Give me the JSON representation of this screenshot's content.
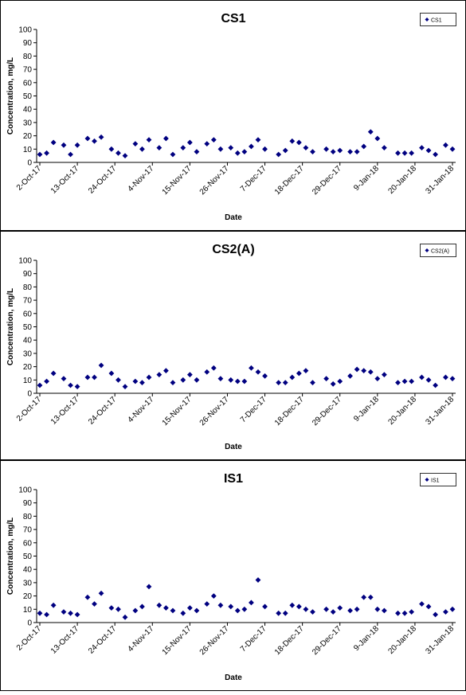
{
  "chart_data": [
    {
      "type": "scatter",
      "title": "CS1",
      "xlabel": "Date",
      "ylabel": "Concentration, mg/L",
      "ylim": [
        0,
        100
      ],
      "yticks": [
        "0",
        "10",
        "20",
        "30",
        "40",
        "50",
        "60",
        "70",
        "80",
        "90",
        "100"
      ],
      "xlim": [
        "2-Oct-17",
        "31-Jan-18"
      ],
      "xtick_labels": [
        "2-Oct-17",
        "13-Oct-17",
        "24-Oct-17",
        "4-Nov-17",
        "15-Nov-17",
        "26-Nov-17",
        "7-Dec-17",
        "18-Dec-17",
        "29-Dec-17",
        "9-Jan-18",
        "20-Jan-18",
        "31-Jan-18"
      ],
      "grid": false,
      "legend": "top-right",
      "color": "#000080",
      "series": [
        {
          "name": "CS1",
          "points": [
            [
              "2-Oct-17",
              6
            ],
            [
              "4-Oct-17",
              7
            ],
            [
              "6-Oct-17",
              15
            ],
            [
              "9-Oct-17",
              13
            ],
            [
              "11-Oct-17",
              6
            ],
            [
              "13-Oct-17",
              13
            ],
            [
              "16-Oct-17",
              18
            ],
            [
              "18-Oct-17",
              16
            ],
            [
              "20-Oct-17",
              19
            ],
            [
              "23-Oct-17",
              10
            ],
            [
              "25-Oct-17",
              7
            ],
            [
              "27-Oct-17",
              5
            ],
            [
              "30-Oct-17",
              14
            ],
            [
              "1-Nov-17",
              10
            ],
            [
              "3-Nov-17",
              17
            ],
            [
              "6-Nov-17",
              11
            ],
            [
              "8-Nov-17",
              18
            ],
            [
              "10-Nov-17",
              6
            ],
            [
              "13-Nov-17",
              11
            ],
            [
              "15-Nov-17",
              15
            ],
            [
              "17-Nov-17",
              8
            ],
            [
              "20-Nov-17",
              14
            ],
            [
              "22-Nov-17",
              17
            ],
            [
              "24-Nov-17",
              10
            ],
            [
              "27-Nov-17",
              11
            ],
            [
              "29-Nov-17",
              7
            ],
            [
              "1-Dec-17",
              8
            ],
            [
              "3-Dec-17",
              12
            ],
            [
              "5-Dec-17",
              17
            ],
            [
              "7-Dec-17",
              10
            ],
            [
              "11-Dec-17",
              6
            ],
            [
              "13-Dec-17",
              9
            ],
            [
              "15-Dec-17",
              16
            ],
            [
              "17-Dec-17",
              15
            ],
            [
              "19-Dec-17",
              11
            ],
            [
              "21-Dec-17",
              8
            ],
            [
              "25-Dec-17",
              10
            ],
            [
              "27-Dec-17",
              8
            ],
            [
              "29-Dec-17",
              9
            ],
            [
              "1-Jan-18",
              8
            ],
            [
              "3-Jan-18",
              8
            ],
            [
              "5-Jan-18",
              12
            ],
            [
              "7-Jan-18",
              23
            ],
            [
              "9-Jan-18",
              18
            ],
            [
              "11-Jan-18",
              11
            ],
            [
              "15-Jan-18",
              7
            ],
            [
              "17-Jan-18",
              7
            ],
            [
              "19-Jan-18",
              7
            ],
            [
              "22-Jan-18",
              11
            ],
            [
              "24-Jan-18",
              9
            ],
            [
              "26-Jan-18",
              6
            ],
            [
              "29-Jan-18",
              13
            ],
            [
              "31-Jan-18",
              10
            ]
          ]
        }
      ]
    },
    {
      "type": "scatter",
      "title": "CS2(A)",
      "xlabel": "Date",
      "ylabel": "Concentration, mg/L",
      "ylim": [
        0,
        100
      ],
      "yticks": [
        "0",
        "10",
        "20",
        "30",
        "40",
        "50",
        "60",
        "70",
        "80",
        "90",
        "100"
      ],
      "xlim": [
        "2-Oct-17",
        "31-Jan-18"
      ],
      "xtick_labels": [
        "2-Oct-17",
        "13-Oct-17",
        "24-Oct-17",
        "4-Nov-17",
        "15-Nov-17",
        "26-Nov-17",
        "7-Dec-17",
        "18-Dec-17",
        "29-Dec-17",
        "9-Jan-18",
        "20-Jan-18",
        "31-Jan-18"
      ],
      "grid": false,
      "legend": "top-right",
      "color": "#000080",
      "series": [
        {
          "name": "CS2(A)",
          "points": [
            [
              "2-Oct-17",
              6
            ],
            [
              "4-Oct-17",
              9
            ],
            [
              "6-Oct-17",
              15
            ],
            [
              "9-Oct-17",
              11
            ],
            [
              "11-Oct-17",
              6
            ],
            [
              "13-Oct-17",
              5
            ],
            [
              "16-Oct-17",
              12
            ],
            [
              "18-Oct-17",
              12
            ],
            [
              "20-Oct-17",
              21
            ],
            [
              "23-Oct-17",
              15
            ],
            [
              "25-Oct-17",
              10
            ],
            [
              "27-Oct-17",
              5
            ],
            [
              "30-Oct-17",
              9
            ],
            [
              "1-Nov-17",
              8
            ],
            [
              "3-Nov-17",
              12
            ],
            [
              "6-Nov-17",
              14
            ],
            [
              "8-Nov-17",
              17
            ],
            [
              "10-Nov-17",
              8
            ],
            [
              "13-Nov-17",
              10
            ],
            [
              "15-Nov-17",
              14
            ],
            [
              "17-Nov-17",
              10
            ],
            [
              "20-Nov-17",
              16
            ],
            [
              "22-Nov-17",
              19
            ],
            [
              "24-Nov-17",
              11
            ],
            [
              "27-Nov-17",
              10
            ],
            [
              "29-Nov-17",
              9
            ],
            [
              "1-Dec-17",
              9
            ],
            [
              "3-Dec-17",
              19
            ],
            [
              "5-Dec-17",
              16
            ],
            [
              "7-Dec-17",
              13
            ],
            [
              "11-Dec-17",
              8
            ],
            [
              "13-Dec-17",
              8
            ],
            [
              "15-Dec-17",
              12
            ],
            [
              "17-Dec-17",
              15
            ],
            [
              "19-Dec-17",
              17
            ],
            [
              "21-Dec-17",
              8
            ],
            [
              "25-Dec-17",
              11
            ],
            [
              "27-Dec-17",
              7
            ],
            [
              "29-Dec-17",
              9
            ],
            [
              "1-Jan-18",
              13
            ],
            [
              "3-Jan-18",
              18
            ],
            [
              "5-Jan-18",
              17
            ],
            [
              "7-Jan-18",
              16
            ],
            [
              "9-Jan-18",
              11
            ],
            [
              "11-Jan-18",
              14
            ],
            [
              "15-Jan-18",
              8
            ],
            [
              "17-Jan-18",
              9
            ],
            [
              "19-Jan-18",
              9
            ],
            [
              "22-Jan-18",
              12
            ],
            [
              "24-Jan-18",
              10
            ],
            [
              "26-Jan-18",
              6
            ],
            [
              "29-Jan-18",
              12
            ],
            [
              "31-Jan-18",
              11
            ]
          ]
        }
      ]
    },
    {
      "type": "scatter",
      "title": "IS1",
      "xlabel": "Date",
      "ylabel": "Concentration, mg/L",
      "ylim": [
        0,
        100
      ],
      "yticks": [
        "0",
        "10",
        "20",
        "30",
        "40",
        "50",
        "60",
        "70",
        "80",
        "90",
        "100"
      ],
      "xlim": [
        "2-Oct-17",
        "31-Jan-18"
      ],
      "xtick_labels": [
        "2-Oct-17",
        "13-Oct-17",
        "24-Oct-17",
        "4-Nov-17",
        "15-Nov-17",
        "26-Nov-17",
        "7-Dec-17",
        "18-Dec-17",
        "29-Dec-17",
        "9-Jan-18",
        "20-Jan-18",
        "31-Jan-18"
      ],
      "grid": false,
      "legend": "top-right",
      "color": "#000080",
      "series": [
        {
          "name": "IS1",
          "points": [
            [
              "2-Oct-17",
              7
            ],
            [
              "4-Oct-17",
              6
            ],
            [
              "6-Oct-17",
              13
            ],
            [
              "9-Oct-17",
              8
            ],
            [
              "11-Oct-17",
              7
            ],
            [
              "13-Oct-17",
              6
            ],
            [
              "16-Oct-17",
              19
            ],
            [
              "18-Oct-17",
              14
            ],
            [
              "20-Oct-17",
              22
            ],
            [
              "23-Oct-17",
              11
            ],
            [
              "25-Oct-17",
              10
            ],
            [
              "27-Oct-17",
              4
            ],
            [
              "30-Oct-17",
              9
            ],
            [
              "1-Nov-17",
              12
            ],
            [
              "3-Nov-17",
              27
            ],
            [
              "6-Nov-17",
              13
            ],
            [
              "8-Nov-17",
              11
            ],
            [
              "10-Nov-17",
              9
            ],
            [
              "13-Nov-17",
              7
            ],
            [
              "15-Nov-17",
              11
            ],
            [
              "17-Nov-17",
              9
            ],
            [
              "20-Nov-17",
              14
            ],
            [
              "22-Nov-17",
              20
            ],
            [
              "24-Nov-17",
              13
            ],
            [
              "27-Nov-17",
              12
            ],
            [
              "29-Nov-17",
              9
            ],
            [
              "1-Dec-17",
              10
            ],
            [
              "3-Dec-17",
              15
            ],
            [
              "5-Dec-17",
              32
            ],
            [
              "7-Dec-17",
              12
            ],
            [
              "11-Dec-17",
              7
            ],
            [
              "13-Dec-17",
              7
            ],
            [
              "15-Dec-17",
              13
            ],
            [
              "17-Dec-17",
              12
            ],
            [
              "19-Dec-17",
              10
            ],
            [
              "21-Dec-17",
              8
            ],
            [
              "25-Dec-17",
              10
            ],
            [
              "27-Dec-17",
              8
            ],
            [
              "29-Dec-17",
              11
            ],
            [
              "1-Jan-18",
              9
            ],
            [
              "3-Jan-18",
              10
            ],
            [
              "5-Jan-18",
              19
            ],
            [
              "7-Jan-18",
              19
            ],
            [
              "9-Jan-18",
              10
            ],
            [
              "11-Jan-18",
              9
            ],
            [
              "15-Jan-18",
              7
            ],
            [
              "17-Jan-18",
              7
            ],
            [
              "19-Jan-18",
              8
            ],
            [
              "22-Jan-18",
              14
            ],
            [
              "24-Jan-18",
              12
            ],
            [
              "26-Jan-18",
              6
            ],
            [
              "29-Jan-18",
              8
            ],
            [
              "31-Jan-18",
              10
            ]
          ]
        }
      ]
    }
  ]
}
